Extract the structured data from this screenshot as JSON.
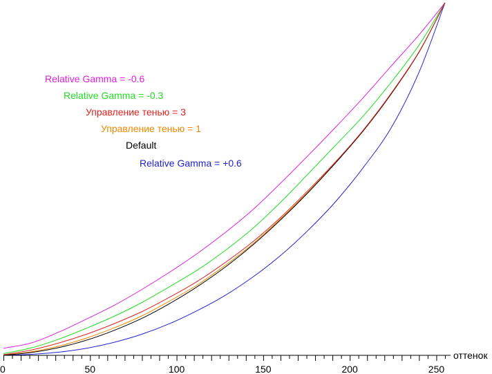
{
  "chart_data": {
    "type": "line",
    "title": "",
    "xlabel": "оттенок",
    "ylabel": "",
    "xlim": [
      0,
      255
    ],
    "ylim": [
      0,
      1
    ],
    "xticks": [
      0,
      50,
      100,
      150,
      200,
      250
    ],
    "xtick_labels": [
      "0",
      "50",
      "100",
      "150",
      "200",
      "250"
    ],
    "x": [
      0,
      16,
      32,
      48,
      64,
      80,
      96,
      112,
      128,
      144,
      160,
      176,
      192,
      208,
      224,
      240,
      255
    ],
    "series": [
      {
        "name": "Relative Gamma = -0.6",
        "color": "#dd22dd",
        "values": [
          0.02,
          0.035,
          0.066,
          0.103,
          0.142,
          0.187,
          0.236,
          0.289,
          0.348,
          0.413,
          0.488,
          0.567,
          0.648,
          0.732,
          0.821,
          0.909,
          1.0
        ]
      },
      {
        "name": "Relative Gamma = -0.3",
        "color": "#22dd22",
        "values": [
          0.005,
          0.021,
          0.046,
          0.077,
          0.111,
          0.15,
          0.195,
          0.242,
          0.297,
          0.36,
          0.434,
          0.515,
          0.597,
          0.68,
          0.775,
          0.88,
          1.0
        ]
      },
      {
        "name": "Управление тенью = 3",
        "color": "#dd2222",
        "values": [
          0.002,
          0.015,
          0.035,
          0.06,
          0.09,
          0.124,
          0.165,
          0.21,
          0.263,
          0.322,
          0.391,
          0.468,
          0.55,
          0.64,
          0.744,
          0.861,
          1.0
        ]
      },
      {
        "name": "Управление тенью = 1",
        "color": "#ee8800",
        "values": [
          0.001,
          0.01,
          0.026,
          0.049,
          0.078,
          0.112,
          0.154,
          0.2,
          0.255,
          0.316,
          0.387,
          0.464,
          0.548,
          0.638,
          0.742,
          0.86,
          1.0
        ]
      },
      {
        "name": "Default",
        "color": "#000000",
        "values": [
          0.0,
          0.008,
          0.022,
          0.043,
          0.071,
          0.105,
          0.147,
          0.195,
          0.25,
          0.313,
          0.384,
          0.462,
          0.547,
          0.638,
          0.742,
          0.86,
          1.0
        ]
      },
      {
        "name": "Relative Gamma = +0.6",
        "color": "#2222cc",
        "values": [
          0.0,
          0.003,
          0.009,
          0.02,
          0.037,
          0.06,
          0.09,
          0.127,
          0.17,
          0.222,
          0.283,
          0.355,
          0.437,
          0.534,
          0.646,
          0.803,
          1.0
        ]
      }
    ],
    "legend_placement": "upper-left, staggered"
  }
}
